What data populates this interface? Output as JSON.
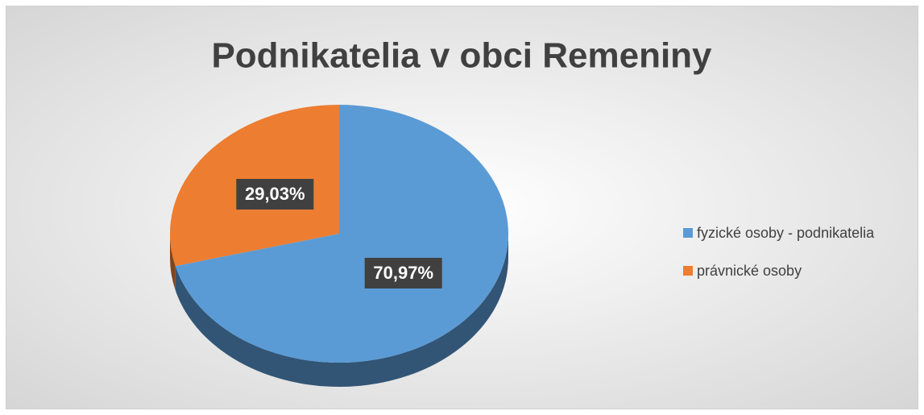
{
  "chart_data": {
    "type": "pie",
    "title": "Podnikatelia v obci Remeniny",
    "categories": [
      "fyzické osoby - podnikatelia",
      "právnické osoby"
    ],
    "values": [
      70.97,
      29.03
    ],
    "value_labels": [
      "70,97%",
      "29,03%"
    ],
    "colors": [
      "#5b9bd5",
      "#ed7d31"
    ],
    "legend": "right"
  }
}
